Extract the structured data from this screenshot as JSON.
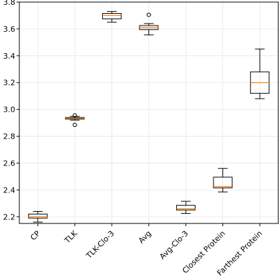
{
  "chart_data": {
    "type": "box",
    "title": "",
    "xlabel": "",
    "ylabel": "",
    "ylim": [
      2.15,
      3.8
    ],
    "yticks": [
      2.2,
      2.4,
      2.6,
      2.8,
      3.0,
      3.2,
      3.4,
      3.6,
      3.8
    ],
    "ytick_labels": [
      "2.2",
      "2.4",
      "2.6",
      "2.8",
      "3.0",
      "3.2",
      "3.4",
      "3.6",
      "3.8"
    ],
    "grid": true,
    "categories": [
      "CP",
      "TLK",
      "TLK-Clo-3",
      "Avg",
      "Avg-Clo-3",
      "Closest Protein",
      "Farthest Protein"
    ],
    "boxes": [
      {
        "label": "CP",
        "whisker_low": 2.16,
        "q1": 2.19,
        "median": 2.2,
        "q3": 2.22,
        "whisker_high": 2.24,
        "outliers": []
      },
      {
        "label": "TLK",
        "whisker_low": 2.92,
        "q1": 2.928,
        "median": 2.935,
        "q3": 2.94,
        "whisker_high": 2.948,
        "outliers": [
          2.885,
          2.955
        ]
      },
      {
        "label": "TLK-Clo-3",
        "whisker_low": 3.65,
        "q1": 3.675,
        "median": 3.7,
        "q3": 3.715,
        "whisker_high": 3.73,
        "outliers": []
      },
      {
        "label": "Avg",
        "whisker_low": 3.555,
        "q1": 3.595,
        "median": 3.61,
        "q3": 3.625,
        "whisker_high": 3.64,
        "outliers": [
          3.705
        ]
      },
      {
        "label": "Avg-Clo-3",
        "whisker_low": 2.225,
        "q1": 2.25,
        "median": 2.26,
        "q3": 2.285,
        "whisker_high": 2.315,
        "outliers": []
      },
      {
        "label": "Closest Protein",
        "whisker_low": 2.385,
        "q1": 2.415,
        "median": 2.425,
        "q3": 2.495,
        "whisker_high": 2.56,
        "outliers": []
      },
      {
        "label": "Farthest Protein",
        "whisker_low": 3.08,
        "q1": 3.12,
        "median": 3.2,
        "q3": 3.28,
        "whisker_high": 3.45,
        "outliers": []
      }
    ],
    "colors": {
      "box": "#000000",
      "median": "#ff7f0e",
      "grid": "#e6e6e6",
      "outlier": "#000000"
    }
  }
}
